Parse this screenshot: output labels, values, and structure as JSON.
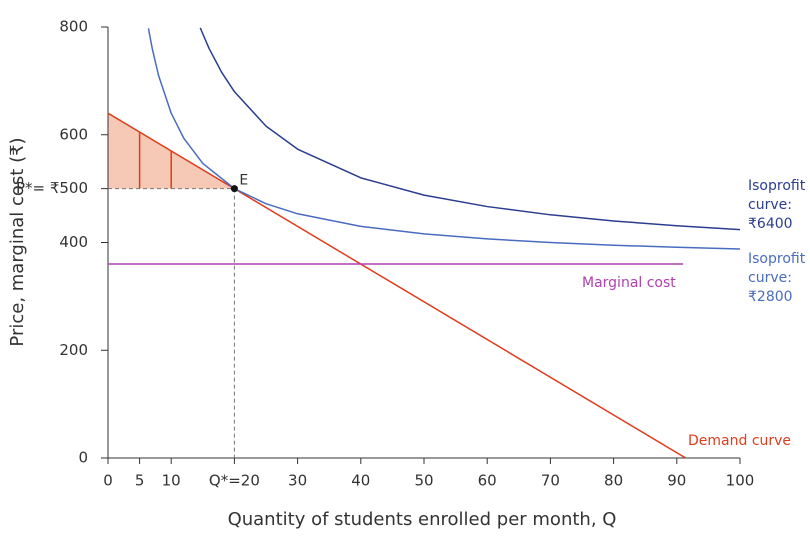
{
  "chart_data": {
    "type": "line",
    "x_label": "Quantity of students enrolled per month, Q",
    "y_label": "Price, marginal cost (₹)",
    "xlim": [
      0,
      100
    ],
    "ylim": [
      0,
      800
    ],
    "xticks": [
      0,
      5,
      10,
      {
        "value": 20,
        "label": "Q*=20"
      },
      30,
      40,
      50,
      60,
      70,
      80,
      90,
      100
    ],
    "yticks": [
      0,
      200,
      400,
      {
        "value": 500,
        "label": "P*= ₹500"
      },
      600,
      800
    ],
    "series": [
      {
        "name": "Demand curve",
        "color": "#e03c1c",
        "x": [
          0,
          91.4
        ],
        "values": [
          640,
          0
        ]
      },
      {
        "name": "Marginal cost",
        "color": "#b040b0",
        "x": [
          0,
          91
        ],
        "values": [
          360,
          360
        ]
      },
      {
        "name": [
          "Isoprofit",
          "curve:",
          "₹6400"
        ],
        "color": "#2b3d8f",
        "x": [
          14.6,
          16,
          18,
          20,
          25,
          30,
          40,
          50,
          60,
          70,
          80,
          90,
          100
        ],
        "values": [
          798.4,
          760,
          715.6,
          680,
          616,
          573.3,
          520,
          488,
          466.7,
          451.4,
          440,
          431.1,
          424
        ]
      },
      {
        "name": [
          "Isoprofit",
          "curve:",
          "₹2800"
        ],
        "color": "#4a6cc0",
        "x": [
          6.4,
          7,
          8,
          10,
          12,
          15,
          20,
          25,
          30,
          40,
          50,
          60,
          70,
          80,
          90,
          100
        ],
        "values": [
          797.5,
          760,
          710,
          640,
          593.3,
          546.7,
          500,
          472,
          453.3,
          430,
          416,
          406.7,
          400,
          395,
          391.1,
          388
        ]
      }
    ],
    "point": {
      "label": "E",
      "x": 20,
      "y": 500
    },
    "shading": {
      "color": "#f5c9b5",
      "x": [
        0,
        20
      ],
      "top": [
        640,
        500
      ],
      "bottom": 500
    },
    "shading_lines": {
      "x": [
        5,
        10
      ],
      "top": [
        605,
        570
      ],
      "bottom": 500
    }
  }
}
